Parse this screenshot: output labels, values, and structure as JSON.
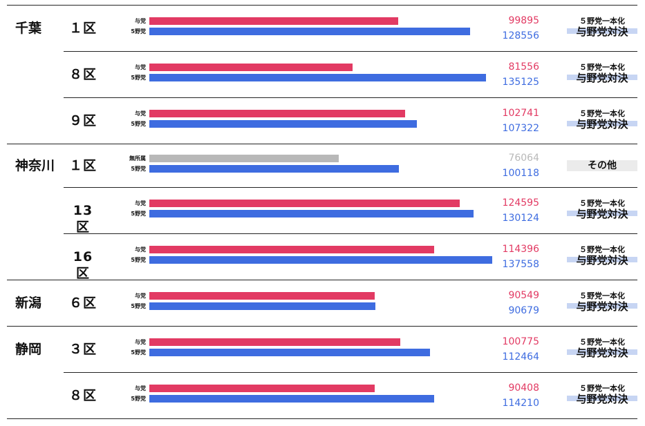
{
  "chart_data": {
    "type": "bar",
    "orientation": "horizontal",
    "max_value": 137558,
    "colors": {
      "ruling": "#e23a63",
      "opposition": "#3e6ce0",
      "independent": "#b8b8b8"
    },
    "tags": {
      "unified_top": "５野党一本化",
      "unified_bottom": "与野党対決",
      "other": "その他"
    },
    "rows": [
      {
        "prefecture": "千葉",
        "district": "１区",
        "tag": "unified",
        "bars": [
          {
            "label": "与党",
            "kind": "ruling",
            "value": 99895
          },
          {
            "label": "5野党",
            "kind": "opposition",
            "value": 128556
          }
        ]
      },
      {
        "prefecture": "",
        "district": "８区",
        "tag": "unified",
        "bars": [
          {
            "label": "与党",
            "kind": "ruling",
            "value": 81556
          },
          {
            "label": "5野党",
            "kind": "opposition",
            "value": 135125
          }
        ]
      },
      {
        "prefecture": "",
        "district": "９区",
        "tag": "unified",
        "bars": [
          {
            "label": "与党",
            "kind": "ruling",
            "value": 102741
          },
          {
            "label": "5野党",
            "kind": "opposition",
            "value": 107322
          }
        ]
      },
      {
        "prefecture": "神奈川",
        "district": "１区",
        "tag": "other",
        "bars": [
          {
            "label": "無所属",
            "kind": "independent",
            "value": 76064
          },
          {
            "label": "5野党",
            "kind": "opposition",
            "value": 100118
          }
        ]
      },
      {
        "prefecture": "",
        "district": "13区",
        "tag": "unified",
        "bars": [
          {
            "label": "与党",
            "kind": "ruling",
            "value": 124595
          },
          {
            "label": "5野党",
            "kind": "opposition",
            "value": 130124
          }
        ]
      },
      {
        "prefecture": "",
        "district": "16区",
        "tag": "unified",
        "bars": [
          {
            "label": "与党",
            "kind": "ruling",
            "value": 114396
          },
          {
            "label": "5野党",
            "kind": "opposition",
            "value": 137558
          }
        ]
      },
      {
        "prefecture": "新潟",
        "district": "６区",
        "tag": "unified",
        "bars": [
          {
            "label": "与党",
            "kind": "ruling",
            "value": 90549
          },
          {
            "label": "5野党",
            "kind": "opposition",
            "value": 90679
          }
        ]
      },
      {
        "prefecture": "静岡",
        "district": "３区",
        "tag": "unified",
        "bars": [
          {
            "label": "与党",
            "kind": "ruling",
            "value": 100775
          },
          {
            "label": "5野党",
            "kind": "opposition",
            "value": 112464
          }
        ]
      },
      {
        "prefecture": "",
        "district": "８区",
        "tag": "unified",
        "bars": [
          {
            "label": "与党",
            "kind": "ruling",
            "value": 90408
          },
          {
            "label": "5野党",
            "kind": "opposition",
            "value": 114210
          }
        ]
      }
    ]
  }
}
